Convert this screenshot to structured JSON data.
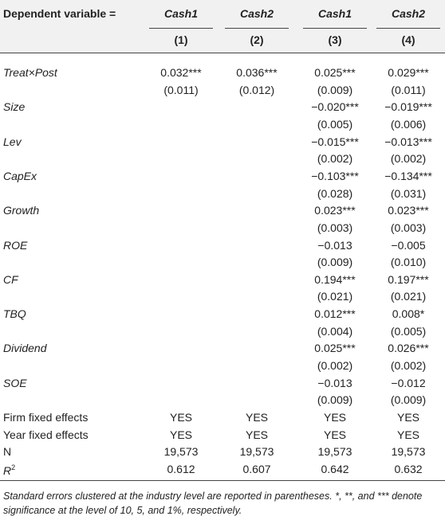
{
  "table": {
    "dependent_label": "Dependent variable =",
    "columns": [
      {
        "name": "Cash1",
        "number": "(1)"
      },
      {
        "name": "Cash2",
        "number": "(2)"
      },
      {
        "name": "Cash1",
        "number": "(3)"
      },
      {
        "name": "Cash2",
        "number": "(4)"
      }
    ],
    "variables": [
      {
        "label": "Treat×Post",
        "values": [
          "0.032***",
          "0.036***",
          "0.025***",
          "0.029***"
        ],
        "se": [
          "(0.011)",
          "(0.012)",
          "(0.009)",
          "(0.011)"
        ]
      },
      {
        "label": "Size",
        "values": [
          null,
          null,
          "−0.020***",
          "−0.019***"
        ],
        "se": [
          null,
          null,
          "(0.005)",
          "(0.006)"
        ]
      },
      {
        "label": "Lev",
        "values": [
          null,
          null,
          "−0.015***",
          "−0.013***"
        ],
        "se": [
          null,
          null,
          "(0.002)",
          "(0.002)"
        ]
      },
      {
        "label": "CapEx",
        "values": [
          null,
          null,
          "−0.103***",
          "−0.134***"
        ],
        "se": [
          null,
          null,
          "(0.028)",
          "(0.031)"
        ]
      },
      {
        "label": "Growth",
        "values": [
          null,
          null,
          "0.023***",
          "0.023***"
        ],
        "se": [
          null,
          null,
          "(0.003)",
          "(0.003)"
        ]
      },
      {
        "label": "ROE",
        "values": [
          null,
          null,
          "−0.013",
          "−0.005"
        ],
        "se": [
          null,
          null,
          "(0.009)",
          "(0.010)"
        ]
      },
      {
        "label": "CF",
        "values": [
          null,
          null,
          "0.194***",
          "0.197***"
        ],
        "se": [
          null,
          null,
          "(0.021)",
          "(0.021)"
        ]
      },
      {
        "label": "TBQ",
        "values": [
          null,
          null,
          "0.012***",
          "0.008*"
        ],
        "se": [
          null,
          null,
          "(0.004)",
          "(0.005)"
        ]
      },
      {
        "label": "Dividend",
        "values": [
          null,
          null,
          "0.025***",
          "0.026***"
        ],
        "se": [
          null,
          null,
          "(0.002)",
          "(0.002)"
        ]
      },
      {
        "label": "SOE",
        "values": [
          null,
          null,
          "−0.013",
          "−0.012"
        ],
        "se": [
          null,
          null,
          "(0.009)",
          "(0.009)"
        ]
      }
    ],
    "summary": [
      {
        "label": "Firm fixed effects",
        "values": [
          "YES",
          "YES",
          "YES",
          "YES"
        ]
      },
      {
        "label": "Year fixed effects",
        "values": [
          "YES",
          "YES",
          "YES",
          "YES"
        ]
      },
      {
        "label": "N",
        "values": [
          "19,573",
          "19,573",
          "19,573",
          "19,573"
        ]
      },
      {
        "label": "R",
        "sup": "2",
        "values": [
          "0.612",
          "0.607",
          "0.642",
          "0.632"
        ]
      }
    ],
    "footnote": "Standard errors clustered at the industry level are reported in parentheses. *, **, and *** denote significance at the level of 10, 5, and 1%, respectively."
  }
}
